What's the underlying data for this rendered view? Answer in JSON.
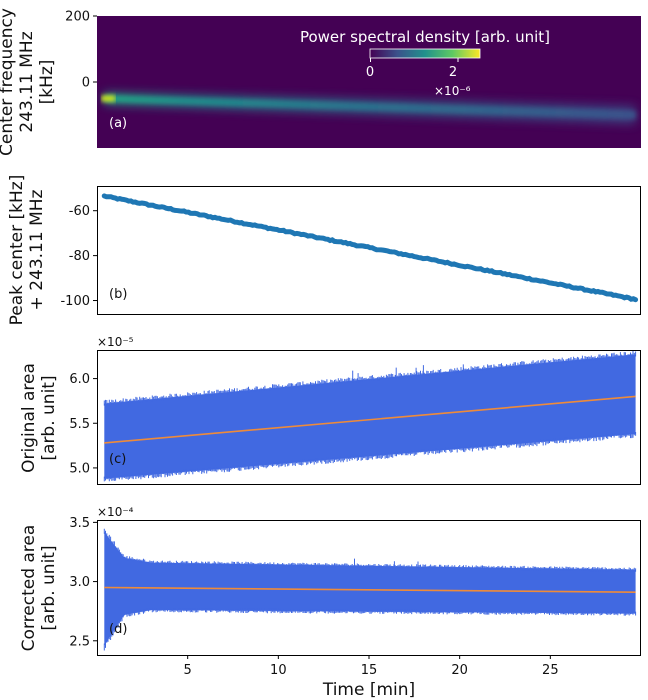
{
  "figure": {
    "xlabel": "Time [min]"
  },
  "chart_data": [
    {
      "type": "heatmap",
      "panel_label": "(a)",
      "ylabel_lines": [
        "Center frequency",
        "243.11 MHz",
        "[kHz]"
      ],
      "y_ticks": [
        200,
        0
      ],
      "ylim": [
        -200,
        200
      ],
      "xlim": [
        0,
        30
      ],
      "colorbar": {
        "label": "Power spectral density [arb. unit]",
        "ticks": [
          "0",
          "2"
        ],
        "multiplier": "×10⁻⁶",
        "range": [
          0,
          2.5
        ],
        "colormap": "viridis",
        "placement": "top-right"
      },
      "ridge": {
        "start_t": 0.4,
        "start_f": -50,
        "end_t": 29.7,
        "end_f": -100
      },
      "colors": {
        "background": "#440154",
        "peak": "#d2e21b",
        "ridge_mid": "#21918c",
        "ridge_low": "#3b528b"
      }
    },
    {
      "type": "line",
      "panel_label": "(b)",
      "ylabel_lines": [
        "Peak center [kHz]",
        "+ 243.11 MHz"
      ],
      "y_ticks": [
        -60,
        -80,
        -100
      ],
      "ylim": [
        -106,
        -49
      ],
      "xlim": [
        0,
        30
      ],
      "series": [
        {
          "x": [
            0.4,
            29.7
          ],
          "y": [
            -53.5,
            -99.5
          ],
          "color": "#1f77b4"
        }
      ]
    },
    {
      "type": "area",
      "panel_label": "(c)",
      "ylabel_lines": [
        "Original area",
        "[arb. unit]"
      ],
      "y_ticks": [
        "6.0",
        "5.5",
        "5.0"
      ],
      "y_tick_values": [
        6.0,
        5.5,
        5.0
      ],
      "ylim": [
        4.82,
        6.32
      ],
      "multiplier": "×10⁻⁵",
      "xlim": [
        0,
        30
      ],
      "band": {
        "x": [
          0.4,
          29.7
        ],
        "upper": [
          5.72,
          6.27
        ],
        "lower": [
          4.88,
          5.38
        ],
        "color": "#4169e1"
      },
      "fit_line": {
        "x": [
          0.4,
          29.7
        ],
        "y": [
          5.28,
          5.8
        ],
        "color": "#ee8b3a"
      }
    },
    {
      "type": "area",
      "panel_label": "(d)",
      "ylabel_lines": [
        "Corrected area",
        "[arb. unit]"
      ],
      "y_ticks": [
        "3.5",
        "3.0",
        "2.5"
      ],
      "y_tick_values": [
        3.5,
        3.0,
        2.5
      ],
      "ylim": [
        2.38,
        3.52
      ],
      "multiplier": "×10⁻⁴",
      "xlim": [
        0,
        30
      ],
      "x_ticks": [
        5,
        10,
        15,
        20,
        25
      ],
      "band": {
        "x": [
          0.4,
          1.5,
          3,
          29.7
        ],
        "upper": [
          3.42,
          3.2,
          3.16,
          3.1
        ],
        "lower": [
          2.46,
          2.72,
          2.76,
          2.73
        ],
        "color": "#4169e1"
      },
      "fit_line": {
        "x": [
          0.4,
          29.7
        ],
        "y": [
          2.95,
          2.91
        ],
        "color": "#ee8b3a"
      }
    }
  ]
}
